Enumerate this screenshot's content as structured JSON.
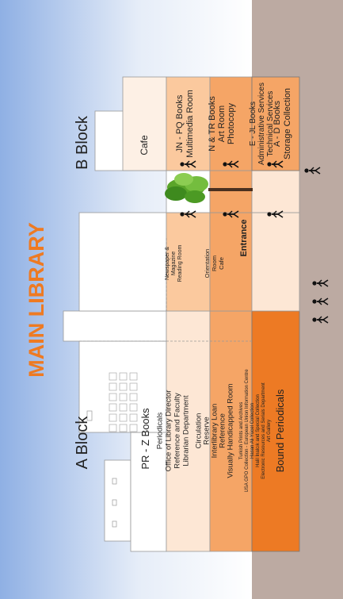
{
  "title": "MAIN LIBRARY",
  "blocks": {
    "a": "A Block",
    "b": "B Block"
  },
  "a_block_floors": {
    "top_floor": "PR - Z Books",
    "floor2": [
      "Periodicals",
      "Office of Library Director",
      "Reference and Faculty",
      "Librarian Department"
    ],
    "floor1": [
      "Circulation",
      "Reserve",
      "Interlibrary Loan",
      "Reference",
      "Visually Handicapped Room"
    ],
    "ground": [
      "Turkish Prints and Archives",
      "USA GPO Collection - European Union Information Centre",
      "Hasan Ali Yücel Collection",
      "Halil İnalcık and Special Collection",
      "Electronic Resources and Serials Department",
      "Art Gallery"
    ],
    "basement": "Bound Periodicals"
  },
  "middle": {
    "newspaper": [
      "Newspaper &",
      "Magazine",
      "Reading Room"
    ],
    "orientation": [
      "Orientation",
      "Room",
      "Cafe"
    ],
    "entrance": "Entrance"
  },
  "b_block_floors": {
    "cafe": "Cafe",
    "floor3": [
      "JN - PQ Books",
      "Multimedia Room"
    ],
    "floor2": [
      "N & TR Books",
      "Art Room",
      "Photocopy"
    ],
    "floor1": [
      "E - JL Books",
      "Administrative Services",
      "Technical Services"
    ],
    "floor0": [
      "A - D Books",
      "Storage Collection"
    ]
  },
  "colors": {
    "sky_top": "#8fb0e4",
    "title": "#ee7a22",
    "ground": "#bcaaa2",
    "floor_light": "#fde7d5",
    "floor_mid": "#fbc99e",
    "floor_orange": "#f5a566",
    "basement": "#ed7a24"
  }
}
